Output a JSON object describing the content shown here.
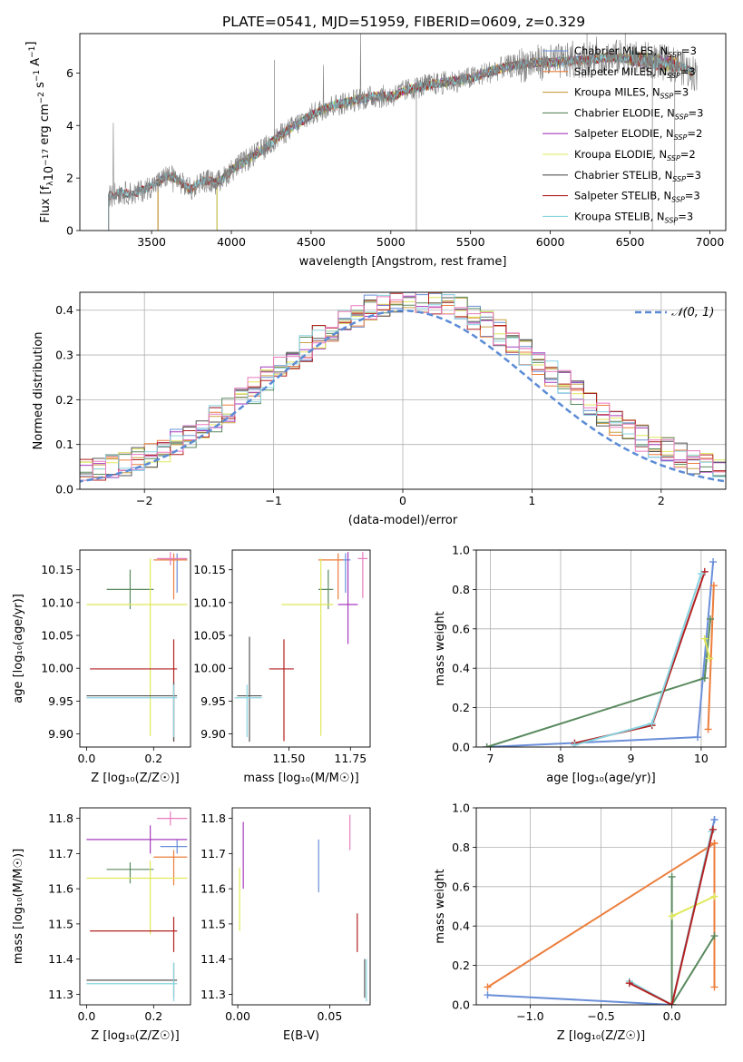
{
  "figure": {
    "title": "PLATE=0541, MJD=51959, FIBERID=0609, z=0.329"
  },
  "colors": {
    "Chabrier MILES": "#6a8fd8",
    "Salpeter MILES": "#ec7e3c",
    "Kroupa MILES": "#c8a040",
    "Chabrier ELODIE": "#5a8a5f",
    "Salpeter ELODIE": "#a63bbd",
    "Kroupa ELODIE": "#e0e85a",
    "Chabrier STELIB": "#555555",
    "Salpeter STELIB": "#b32020",
    "Kroupa STELIB": "#88d4e0",
    "pink": "#e87bbd",
    "normal": "#5b8bd6",
    "grid": "#b0b0b0"
  },
  "chart_data": [
    {
      "id": "spectrum",
      "type": "line",
      "title": "PLATE=0541, MJD=51959, FIBERID=0609, z=0.329",
      "xlabel": "wavelength [Angstrom, rest frame]",
      "ylabel": "Flux [f_λ 10⁻¹⁷ erg cm⁻² s⁻¹ A⁻¹]",
      "xlim": [
        3050,
        7100
      ],
      "ylim": [
        0,
        7.5
      ],
      "xticks": [
        3500,
        4000,
        4500,
        5000,
        5500,
        6000,
        6500,
        7000
      ],
      "yticks": [
        0,
        2,
        4,
        6
      ],
      "grid": false,
      "legend_position": "top-right",
      "legend": [
        {
          "base": "Chabrier MILES, N",
          "sub": "SSP",
          "tail": "=3",
          "color_key": "Chabrier MILES"
        },
        {
          "base": "Salpeter MILES, N",
          "sub": "SSP",
          "tail": "=3",
          "color_key": "Salpeter MILES"
        },
        {
          "base": "Kroupa MILES, N",
          "sub": "SSP",
          "tail": "=3",
          "color_key": "Kroupa MILES"
        },
        {
          "base": "Chabrier ELODIE, N",
          "sub": "SSP",
          "tail": "=3",
          "color_key": "Chabrier ELODIE"
        },
        {
          "base": "Salpeter ELODIE, N",
          "sub": "SSP",
          "tail": "=2",
          "color_key": "Salpeter ELODIE"
        },
        {
          "base": "Kroupa ELODIE, N",
          "sub": "SSP",
          "tail": "=2",
          "color_key": "Kroupa ELODIE"
        },
        {
          "base": "Chabrier STELIB, N",
          "sub": "SSP",
          "tail": "=3",
          "color_key": "Chabrier STELIB"
        },
        {
          "base": "Salpeter STELIB, N",
          "sub": "SSP",
          "tail": "=3",
          "color_key": "Salpeter STELIB"
        },
        {
          "base": "Kroupa STELIB, N",
          "sub": "SSP",
          "tail": "=3",
          "color_key": "Kroupa STELIB"
        }
      ],
      "data_series": {
        "name": "data",
        "color": "#808080",
        "x": [
          3230,
          3300,
          3400,
          3500,
          3550,
          3600,
          3650,
          3700,
          3750,
          3800,
          3850,
          3900,
          3950,
          4000,
          4100,
          4200,
          4300,
          4400,
          4500,
          4600,
          4700,
          4800,
          4900,
          5000,
          5100,
          5200,
          5300,
          5400,
          5500,
          5600,
          5700,
          5800,
          5900,
          6000,
          6100,
          6200,
          6300,
          6400,
          6500,
          6600,
          6700,
          6800,
          6900
        ],
        "y": [
          1.3,
          1.45,
          1.4,
          1.7,
          1.85,
          2.1,
          2.0,
          1.75,
          1.55,
          1.85,
          1.9,
          1.8,
          2.0,
          2.3,
          2.7,
          3.1,
          3.6,
          4.0,
          4.4,
          4.7,
          4.85,
          5.0,
          5.1,
          5.1,
          5.35,
          5.5,
          5.6,
          5.7,
          5.8,
          6.0,
          6.2,
          6.3,
          6.4,
          6.4,
          6.45,
          6.5,
          6.55,
          6.6,
          6.55,
          6.5,
          6.4,
          6.3,
          6.0
        ]
      },
      "model_starts": {
        "MILES": 3540,
        "ELODIE": 3910,
        "STELIB": 3230
      }
    },
    {
      "id": "residuals",
      "type": "histogram",
      "xlabel": "(data-model)/error",
      "ylabel": "Normed distribution",
      "xlim": [
        -2.5,
        2.5
      ],
      "ylim": [
        0,
        0.44
      ],
      "xticks": [
        -2,
        -1,
        0,
        1,
        2
      ],
      "yticks": [
        0.0,
        0.1,
        0.2,
        0.3,
        0.4
      ],
      "grid": true,
      "legend_position": "top-right",
      "legend": [
        {
          "label": "𝒩(0, 1)",
          "style": "dashed",
          "color_key": "normal"
        }
      ],
      "bin_width": 0.1,
      "bin_start": -2.5
    },
    {
      "id": "age-vs-Z",
      "type": "errorbar",
      "xlabel": "Z [log₁₀(Z/Z☉)]",
      "ylabel": "age  [log₁₀(age/yr)]",
      "xlim": [
        -0.02,
        0.31
      ],
      "ylim": [
        9.88,
        10.18
      ],
      "xticks": [
        0.0,
        0.2
      ],
      "yticks": [
        9.9,
        9.95,
        10.0,
        10.05,
        10.1,
        10.15
      ],
      "points": [
        {
          "color_key": "Chabrier MILES",
          "x": 0.27,
          "y": 10.165,
          "xerr": [
            0.05,
            0.03
          ],
          "yerr": [
            0.05,
            0.01
          ]
        },
        {
          "color_key": "Salpeter MILES",
          "x": 0.26,
          "y": 10.165,
          "xerr": [
            0.06,
            0.04
          ],
          "yerr": [
            0.06,
            0.01
          ]
        },
        {
          "color_key": "pink",
          "x": 0.25,
          "y": 10.167,
          "xerr": [
            0.04,
            0.05
          ],
          "yerr": [
            0.01,
            0.01
          ]
        },
        {
          "color_key": "Chabrier ELODIE",
          "x": 0.13,
          "y": 10.12,
          "xerr": [
            0.07,
            0.07
          ],
          "yerr": [
            0.03,
            0.03
          ]
        },
        {
          "color_key": "Kroupa ELODIE",
          "x": 0.19,
          "y": 10.097,
          "xerr": [
            0.19,
            0.11
          ],
          "yerr": [
            0.2,
            0.07
          ]
        },
        {
          "color_key": "Salpeter STELIB",
          "x": 0.26,
          "y": 9.999,
          "xerr": [
            0.25,
            0.01
          ],
          "yerr": [
            0.11,
            0.045
          ]
        },
        {
          "color_key": "Chabrier STELIB",
          "x": 0.26,
          "y": 9.958,
          "xerr": [
            0.26,
            0.01
          ],
          "yerr": [
            0.07,
            0.02
          ]
        },
        {
          "color_key": "Kroupa STELIB",
          "x": 0.26,
          "y": 9.955,
          "xerr": [
            0.26,
            0.01
          ],
          "yerr": [
            0.06,
            0.02
          ]
        }
      ]
    },
    {
      "id": "age-vs-mass",
      "type": "errorbar",
      "xlabel": "mass [log₁₀(M/M☉)]",
      "ylabel": "",
      "xlim": [
        11.27,
        11.83
      ],
      "ylim": [
        9.88,
        10.18
      ],
      "xticks": [
        11.25,
        11.5,
        11.75
      ],
      "yticks": [
        9.9,
        9.95,
        10.0,
        10.05,
        10.1,
        10.15
      ],
      "points": [
        {
          "color_key": "Chabrier MILES",
          "x": 11.73,
          "y": 10.165,
          "xerr": [
            0.02,
            0.02
          ],
          "yerr": [
            0.05,
            0.01
          ]
        },
        {
          "color_key": "Salpeter MILES",
          "x": 11.7,
          "y": 10.165,
          "xerr": [
            0.08,
            0.02
          ],
          "yerr": [
            0.06,
            0.01
          ]
        },
        {
          "color_key": "pink",
          "x": 11.8,
          "y": 10.167,
          "xerr": [
            0.02,
            0.02
          ],
          "yerr": [
            0.06,
            0.01
          ]
        },
        {
          "color_key": "Chabrier ELODIE",
          "x": 11.66,
          "y": 10.12,
          "xerr": [
            0.04,
            0.02
          ],
          "yerr": [
            0.03,
            0.03
          ]
        },
        {
          "color_key": "Salpeter ELODIE",
          "x": 11.74,
          "y": 10.097,
          "xerr": [
            0.04,
            0.04
          ],
          "yerr": [
            0.06,
            0.08
          ]
        },
        {
          "color_key": "Kroupa ELODIE",
          "x": 11.63,
          "y": 10.097,
          "xerr": [
            0.16,
            0.05
          ],
          "yerr": [
            0.2,
            0.07
          ]
        },
        {
          "color_key": "Salpeter STELIB",
          "x": 11.48,
          "y": 9.999,
          "xerr": [
            0.06,
            0.04
          ],
          "yerr": [
            0.11,
            0.045
          ]
        },
        {
          "color_key": "Chabrier STELIB",
          "x": 11.34,
          "y": 9.958,
          "xerr": [
            0.05,
            0.05
          ],
          "yerr": [
            0.07,
            0.09
          ]
        },
        {
          "color_key": "Kroupa STELIB",
          "x": 11.33,
          "y": 9.955,
          "xerr": [
            0.05,
            0.06
          ],
          "yerr": [
            0.06,
            0.02
          ]
        }
      ]
    },
    {
      "id": "weight-vs-age",
      "type": "line",
      "xlabel": "age  [log₁₀(age/yr)]",
      "ylabel": "mass weight",
      "xlim": [
        6.8,
        10.35
      ],
      "ylim": [
        0,
        1
      ],
      "xticks": [
        7,
        8,
        9,
        10
      ],
      "yticks": [
        0.0,
        0.2,
        0.4,
        0.6,
        0.8,
        1.0
      ],
      "grid": true,
      "series": [
        {
          "color_key": "Chabrier MILES",
          "x": [
            6.95,
            9.95,
            10.17
          ],
          "y": [
            0.0,
            0.05,
            0.94
          ]
        },
        {
          "color_key": "Salpeter MILES",
          "x": [
            10.1,
            10.18
          ],
          "y": [
            0.09,
            0.82
          ]
        },
        {
          "color_key": "Chabrier ELODIE",
          "x": [
            6.95,
            10.05,
            10.13
          ],
          "y": [
            0.0,
            0.35,
            0.65
          ]
        },
        {
          "color_key": "Kroupa ELODIE",
          "x": [
            10.05,
            10.12
          ],
          "y": [
            0.55,
            0.45
          ]
        },
        {
          "color_key": "Salpeter STELIB",
          "x": [
            8.2,
            9.3,
            10.05
          ],
          "y": [
            0.02,
            0.11,
            0.89
          ]
        },
        {
          "color_key": "Kroupa STELIB",
          "x": [
            8.2,
            9.3,
            10.0
          ],
          "y": [
            0.01,
            0.12,
            0.88
          ]
        }
      ]
    },
    {
      "id": "mass-vs-Z",
      "type": "errorbar",
      "xlabel": "Z [log₁₀(Z/Z☉)]",
      "ylabel": "mass [log₁₀(M/M☉)]",
      "xlim": [
        -0.02,
        0.31
      ],
      "ylim": [
        11.27,
        11.83
      ],
      "xticks": [
        0.0,
        0.2
      ],
      "yticks": [
        11.3,
        11.4,
        11.5,
        11.6,
        11.7,
        11.8
      ],
      "points": [
        {
          "color_key": "Chabrier MILES",
          "x": 0.27,
          "y": 11.72,
          "xerr": [
            0.05,
            0.03
          ],
          "yerr": [
            0.02,
            0.02
          ]
        },
        {
          "color_key": "Salpeter MILES",
          "x": 0.26,
          "y": 11.69,
          "xerr": [
            0.06,
            0.04
          ],
          "yerr": [
            0.08,
            0.02
          ]
        },
        {
          "color_key": "pink",
          "x": 0.25,
          "y": 11.8,
          "xerr": [
            0.04,
            0.05
          ],
          "yerr": [
            0.02,
            0.02
          ]
        },
        {
          "color_key": "Salpeter ELODIE",
          "x": 0.19,
          "y": 11.74,
          "xerr": [
            0.19,
            0.11
          ],
          "yerr": [
            0.04,
            0.04
          ]
        },
        {
          "color_key": "Chabrier ELODIE",
          "x": 0.13,
          "y": 11.655,
          "xerr": [
            0.07,
            0.07
          ],
          "yerr": [
            0.04,
            0.02
          ]
        },
        {
          "color_key": "Kroupa ELODIE",
          "x": 0.19,
          "y": 11.63,
          "xerr": [
            0.19,
            0.11
          ],
          "yerr": [
            0.16,
            0.05
          ]
        },
        {
          "color_key": "Salpeter STELIB",
          "x": 0.26,
          "y": 11.48,
          "xerr": [
            0.25,
            0.01
          ],
          "yerr": [
            0.06,
            0.04
          ]
        },
        {
          "color_key": "Chabrier STELIB",
          "x": 0.26,
          "y": 11.34,
          "xerr": [
            0.26,
            0.01
          ],
          "yerr": [
            0.05,
            0.05
          ]
        },
        {
          "color_key": "Kroupa STELIB",
          "x": 0.26,
          "y": 11.33,
          "xerr": [
            0.26,
            0.01
          ],
          "yerr": [
            0.05,
            0.06
          ]
        }
      ]
    },
    {
      "id": "mass-vs-EBV",
      "type": "errorbar",
      "xlabel": "E(B-V)",
      "ylabel": "",
      "xlim": [
        -0.003,
        0.072
      ],
      "ylim": [
        11.27,
        11.83
      ],
      "xticks": [
        0.0,
        0.05
      ],
      "yticks": [
        11.3,
        11.4,
        11.5,
        11.6,
        11.7,
        11.8
      ],
      "points": [
        {
          "color_key": "Salpeter ELODIE",
          "x": 0.003,
          "y": 11.74,
          "xerr": [
            0,
            0
          ],
          "yerr": [
            0.14,
            0.05
          ]
        },
        {
          "color_key": "Kroupa ELODIE",
          "x": 0.001,
          "y": 11.6,
          "xerr": [
            0,
            0
          ],
          "yerr": [
            0.12,
            0.06
          ]
        },
        {
          "color_key": "Chabrier MILES",
          "x": 0.044,
          "y": 11.69,
          "xerr": [
            0,
            0
          ],
          "yerr": [
            0.1,
            0.05
          ]
        },
        {
          "color_key": "pink",
          "x": 0.061,
          "y": 11.75,
          "xerr": [
            0,
            0
          ],
          "yerr": [
            0.04,
            0.06
          ]
        },
        {
          "color_key": "Salpeter STELIB",
          "x": 0.065,
          "y": 11.48,
          "xerr": [
            0,
            0
          ],
          "yerr": [
            0.06,
            0.05
          ]
        },
        {
          "color_key": "Chabrier STELIB",
          "x": 0.069,
          "y": 11.34,
          "xerr": [
            0,
            0
          ],
          "yerr": [
            0.05,
            0.06
          ]
        },
        {
          "color_key": "Kroupa STELIB",
          "x": 0.07,
          "y": 11.33,
          "xerr": [
            0,
            0
          ],
          "yerr": [
            0.05,
            0.07
          ]
        }
      ]
    },
    {
      "id": "weight-vs-Z",
      "type": "line",
      "xlabel": "Z [log₁₀(Z/Z☉)]",
      "ylabel": "mass weight",
      "xlim": [
        -1.38,
        0.38
      ],
      "ylim": [
        0,
        1
      ],
      "xticks": [
        -1.0,
        -0.5,
        0.0
      ],
      "yticks": [
        0.0,
        0.2,
        0.4,
        0.6,
        0.8,
        1.0
      ],
      "grid": true,
      "series": [
        {
          "color_key": "Salpeter MILES",
          "x": [
            -1.3,
            0.3,
            0.3,
            0.3
          ],
          "y": [
            0.09,
            0.82,
            0.09,
            0.82
          ]
        },
        {
          "color_key": "Chabrier MILES",
          "x": [
            -1.3,
            0.0,
            0.3,
            0.3
          ],
          "y": [
            0.05,
            0.0,
            0.94,
            0.94
          ]
        },
        {
          "color_key": "Chabrier ELODIE",
          "x": [
            0.0,
            0.0,
            0.3
          ],
          "y": [
            0.65,
            0.0,
            0.35
          ]
        },
        {
          "color_key": "Kroupa ELODIE",
          "x": [
            0.0,
            0.3
          ],
          "y": [
            0.45,
            0.55
          ]
        },
        {
          "color_key": "Kroupa STELIB",
          "x": [
            -0.3,
            0.0,
            0.28
          ],
          "y": [
            0.12,
            0.0,
            0.88
          ]
        },
        {
          "color_key": "Salpeter STELIB",
          "x": [
            -0.3,
            0.0,
            0.29
          ],
          "y": [
            0.11,
            0.0,
            0.89
          ]
        }
      ]
    }
  ]
}
